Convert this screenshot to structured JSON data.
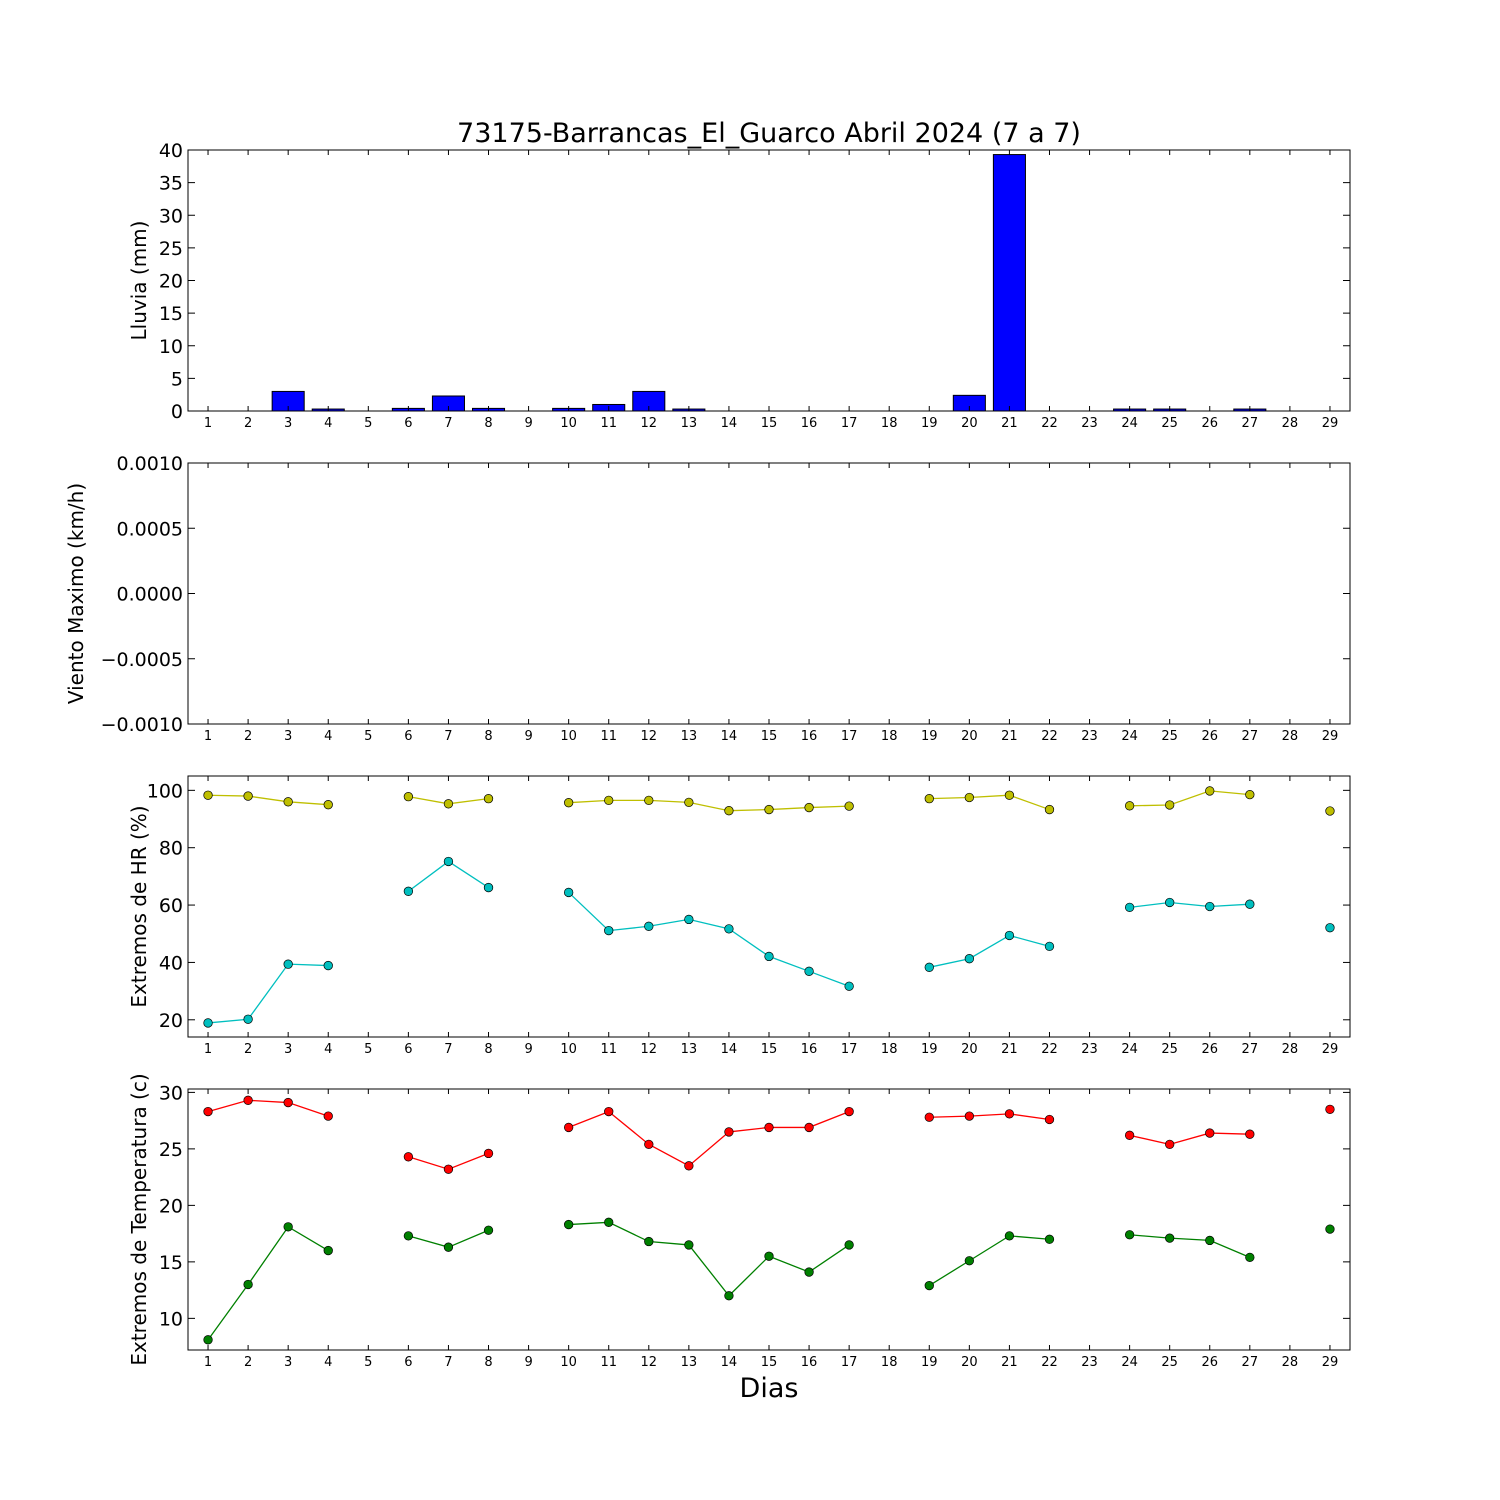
{
  "chart_data": {
    "title": "73175-Barrancas_El_Guarco Abril 2024  (7 a 7)",
    "xlabel": "Dias",
    "days": [
      1,
      2,
      3,
      4,
      5,
      6,
      7,
      8,
      9,
      10,
      11,
      12,
      13,
      14,
      15,
      16,
      17,
      18,
      19,
      20,
      21,
      22,
      23,
      24,
      25,
      26,
      27,
      28,
      29
    ],
    "panels": [
      {
        "id": "lluvia",
        "type": "bar",
        "ylabel": "Lluvia (mm)",
        "ylim": [
          0,
          40
        ],
        "yticks": [
          0,
          5,
          10,
          15,
          20,
          25,
          30,
          35,
          40
        ],
        "ytick_labels": [
          "0",
          "5",
          "10",
          "15",
          "20",
          "25",
          "30",
          "35",
          "40"
        ],
        "grid": false,
        "series": [
          {
            "color": "#0000ff",
            "values": [
              0,
              0,
              3.0,
              0.3,
              0,
              0.4,
              2.3,
              0.4,
              0,
              0.4,
              1.0,
              3.0,
              0.3,
              0,
              0,
              0,
              0,
              0,
              0,
              2.4,
              39.3,
              0,
              0,
              0.3,
              0.3,
              0,
              0.3,
              0,
              0
            ]
          }
        ]
      },
      {
        "id": "viento",
        "type": "line",
        "ylabel": "Viento Maximo (km/h)",
        "ylim": [
          -0.001,
          0.001
        ],
        "yticks": [
          -0.001,
          -0.0005,
          0,
          0.0005,
          0.001
        ],
        "ytick_labels": [
          "−0.0010",
          "−0.0005",
          "0.0000",
          "0.0005",
          "0.0010"
        ],
        "grid": false,
        "series": []
      },
      {
        "id": "hr",
        "type": "line",
        "ylabel": "Extremos de HR (%)",
        "ylim": [
          14,
          105
        ],
        "yticks": [
          20,
          40,
          60,
          80,
          100
        ],
        "ytick_labels": [
          "20",
          "40",
          "60",
          "80",
          "100"
        ],
        "grid": false,
        "series": [
          {
            "color": "#bfbf00",
            "values": [
              98.3,
              98.0,
              96.0,
              95.0,
              null,
              97.8,
              95.3,
              97.1,
              null,
              95.7,
              96.5,
              96.5,
              95.8,
              92.9,
              93.3,
              94.0,
              94.5,
              null,
              97.1,
              97.5,
              98.3,
              93.3,
              null,
              94.6,
              94.9,
              99.8,
              98.5,
              null,
              92.8
            ]
          },
          {
            "color": "#00bfbf",
            "values": [
              18.9,
              20.2,
              39.4,
              38.9,
              null,
              64.8,
              75.2,
              66.1,
              null,
              64.4,
              51.1,
              52.6,
              55.0,
              51.7,
              42.1,
              36.9,
              31.7,
              null,
              38.3,
              41.3,
              49.4,
              45.6,
              null,
              59.2,
              60.9,
              59.5,
              60.3,
              null,
              52.1
            ]
          }
        ]
      },
      {
        "id": "temp",
        "type": "line",
        "ylabel": "Extremos de Temperatura (c)",
        "ylim": [
          7.2,
          30.3
        ],
        "yticks": [
          10,
          15,
          20,
          25,
          30
        ],
        "ytick_labels": [
          "10",
          "15",
          "20",
          "25",
          "30"
        ],
        "grid": false,
        "series": [
          {
            "color": "#ff0000",
            "values": [
              28.3,
              29.3,
              29.1,
              27.9,
              null,
              24.3,
              23.2,
              24.6,
              null,
              26.9,
              28.3,
              25.4,
              23.5,
              26.5,
              26.9,
              26.9,
              28.3,
              null,
              27.8,
              27.9,
              28.1,
              27.6,
              null,
              26.2,
              25.4,
              26.4,
              26.3,
              null,
              28.5
            ]
          },
          {
            "color": "#008000",
            "values": [
              8.1,
              13.0,
              18.1,
              16.0,
              null,
              17.3,
              16.3,
              17.8,
              null,
              18.3,
              18.5,
              16.8,
              16.5,
              12.0,
              15.5,
              14.1,
              16.5,
              null,
              12.9,
              15.1,
              17.3,
              17.0,
              null,
              17.4,
              17.1,
              16.9,
              15.4,
              null,
              17.9
            ]
          }
        ]
      }
    ]
  }
}
